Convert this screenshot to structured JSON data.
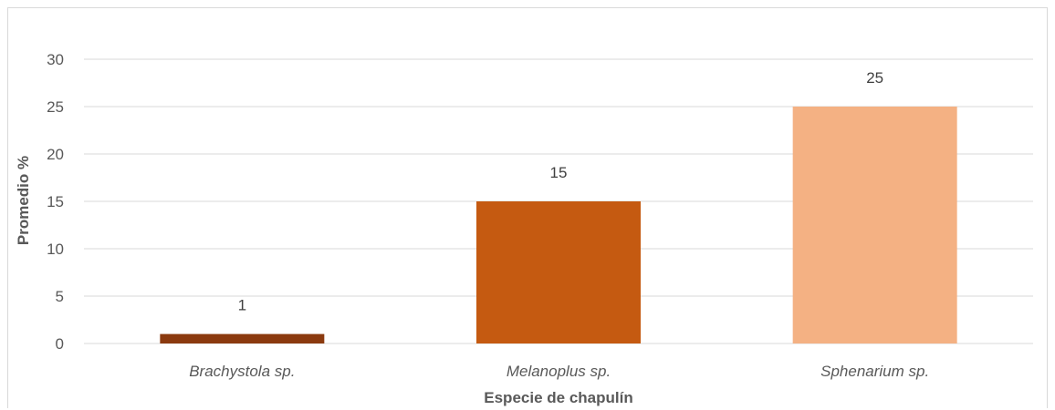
{
  "chart_data": {
    "type": "bar",
    "title": "",
    "xlabel": "Especie de chapulín",
    "ylabel": "Promedio %",
    "categories": [
      "Brachystola sp.",
      "Melanoplus sp.",
      "Sphenarium sp."
    ],
    "values": [
      1,
      15,
      25
    ],
    "data_labels": [
      "1",
      "15",
      "25"
    ],
    "bar_colors": [
      "#8B3A0F",
      "#C55A11",
      "#F4B183"
    ],
    "ylim": [
      0,
      30
    ],
    "yticks": [
      "0",
      "5",
      "10",
      "15",
      "20",
      "25",
      "30"
    ],
    "grid": true,
    "legend": "none"
  }
}
